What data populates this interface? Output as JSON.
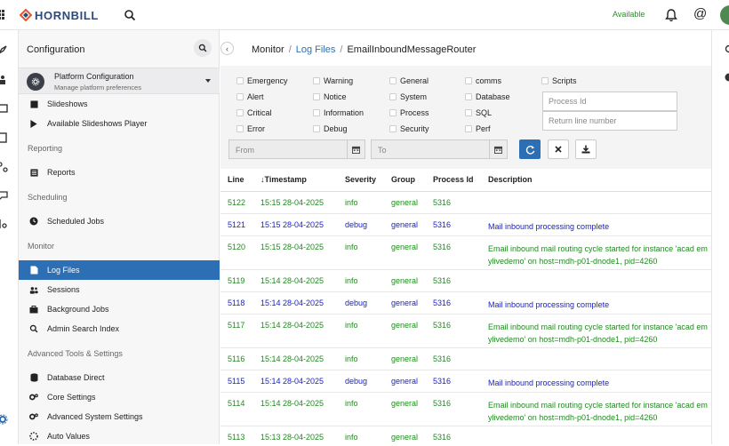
{
  "topbar": {
    "logo_text": "HORNBILL",
    "status": "Available",
    "at_symbol": "@"
  },
  "sidebar": {
    "title": "Configuration",
    "platform": {
      "title": "Platform Configuration",
      "subtitle": "Manage platform preferences"
    },
    "items": [
      {
        "label": "Slideshows",
        "icon": "slides-icon"
      },
      {
        "label": "Available Slideshows Player",
        "icon": "play-icon"
      },
      {
        "label": "Reports",
        "icon": "report-icon"
      },
      {
        "label": "Scheduled Jobs",
        "icon": "clock-icon"
      },
      {
        "label": "Log Files",
        "icon": "file-icon",
        "active": true
      },
      {
        "label": "Sessions",
        "icon": "users-icon"
      },
      {
        "label": "Background Jobs",
        "icon": "briefcase-icon"
      },
      {
        "label": "Admin Search Index",
        "icon": "search-icon"
      },
      {
        "label": "Database Direct",
        "icon": "database-icon"
      },
      {
        "label": "Core Settings",
        "icon": "gears-icon"
      },
      {
        "label": "Advanced System Settings",
        "icon": "gears-icon"
      },
      {
        "label": "Auto Values",
        "icon": "spinner-icon"
      }
    ],
    "headers": [
      "Reporting",
      "Scheduling",
      "Monitor",
      "Advanced Tools & Settings"
    ]
  },
  "breadcrumb": {
    "root": "Monitor",
    "link": "Log Files",
    "current": "EmailInboundMessageRouter"
  },
  "filters": {
    "checkboxes": [
      [
        "Emergency",
        "Alert",
        "Critical",
        "Error"
      ],
      [
        "Warning",
        "Notice",
        "Information",
        "Debug"
      ],
      [
        "General",
        "System",
        "Process",
        "Security"
      ],
      [
        "comms",
        "Database",
        "SQL",
        "Perf"
      ],
      [
        "Scripts"
      ]
    ],
    "process_id_placeholder": "Process Id",
    "return_line_placeholder": "Return line number",
    "from_placeholder": "From",
    "to_placeholder": "To"
  },
  "table": {
    "headers": [
      "Line",
      "Timestamp",
      "Severity",
      "Group",
      "Process Id",
      "Description"
    ],
    "sort_arrow": "↓",
    "rows": [
      {
        "line": "5122",
        "ts": "15:15 28-04-2025",
        "sev": "info",
        "group": "general",
        "pid": "5316",
        "desc": ""
      },
      {
        "line": "5121",
        "ts": "15:15 28-04-2025",
        "sev": "debug",
        "group": "general",
        "pid": "5316",
        "desc": "Mail inbound processing complete"
      },
      {
        "line": "5120",
        "ts": "15:15 28-04-2025",
        "sev": "info",
        "group": "general",
        "pid": "5316",
        "desc": "Email inbound mail routing cycle started for instance 'acad emylivedemo' on host=mdh-p01-dnode1, pid=4260"
      },
      {
        "line": "5119",
        "ts": "15:14 28-04-2025",
        "sev": "info",
        "group": "general",
        "pid": "5316",
        "desc": ""
      },
      {
        "line": "5118",
        "ts": "15:14 28-04-2025",
        "sev": "debug",
        "group": "general",
        "pid": "5316",
        "desc": "Mail inbound processing complete"
      },
      {
        "line": "5117",
        "ts": "15:14 28-04-2025",
        "sev": "info",
        "group": "general",
        "pid": "5316",
        "desc": "Email inbound mail routing cycle started for instance 'acad emylivedemo' on host=mdh-p01-dnode1, pid=4260"
      },
      {
        "line": "5116",
        "ts": "15:14 28-04-2025",
        "sev": "info",
        "group": "general",
        "pid": "5316",
        "desc": ""
      },
      {
        "line": "5115",
        "ts": "15:14 28-04-2025",
        "sev": "debug",
        "group": "general",
        "pid": "5316",
        "desc": "Mail inbound processing complete"
      },
      {
        "line": "5114",
        "ts": "15:14 28-04-2025",
        "sev": "info",
        "group": "general",
        "pid": "5316",
        "desc": "Email inbound mail routing cycle started for instance 'acad emylivedemo' on host=mdh-p01-dnode1, pid=4260"
      },
      {
        "line": "5113",
        "ts": "15:13 28-04-2025",
        "sev": "info",
        "group": "general",
        "pid": "5316",
        "desc": ""
      }
    ]
  },
  "colors": {
    "accent": "#2d6fb4",
    "info": "#1f8a1f",
    "debug": "#1a22c8",
    "status": "#2e8b2e"
  }
}
